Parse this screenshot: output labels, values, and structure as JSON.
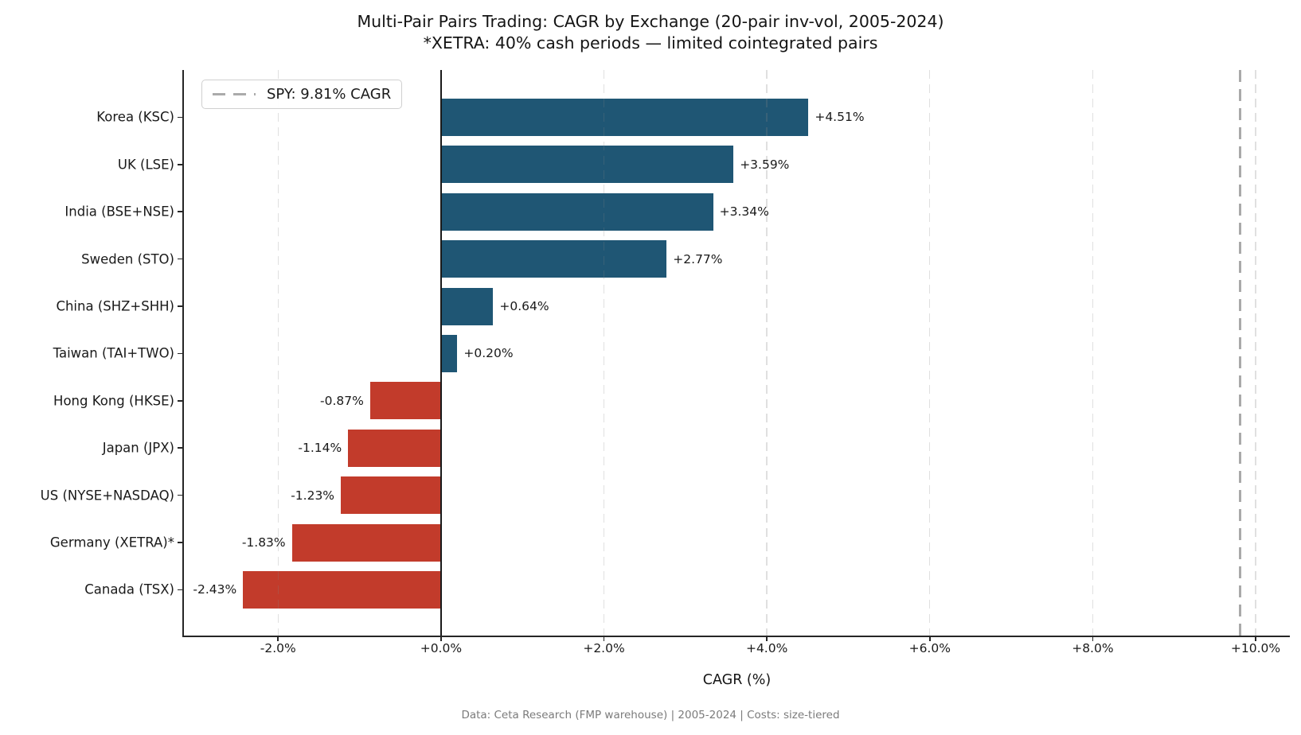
{
  "title": "Multi-Pair Pairs Trading: CAGR by Exchange (20-pair inv-vol, 2005-2024)",
  "subtitle": "*XETRA: 40% cash periods — limited cointegrated pairs",
  "legend": {
    "label": "SPY: 9.81% CAGR",
    "line_color": "#ababab"
  },
  "footer": "Data: Ceta Research (FMP warehouse) | 2005-2024 | Costs: size-tiered",
  "colors": {
    "positive_bar": "#1f5674",
    "negative_bar": "#c23b2b",
    "reference_line": "#a9a9a9",
    "zero_line": "#1a1a1a",
    "footer_text": "#7b7b7b"
  },
  "chart_data": {
    "type": "bar",
    "orientation": "horizontal",
    "title": "Multi-Pair Pairs Trading: CAGR by Exchange (20-pair inv-vol, 2005-2024)",
    "subtitle": "*XETRA: 40% cash periods — limited cointegrated pairs",
    "xlabel": "CAGR (%)",
    "categories": [
      "Korea (KSC)",
      "UK (LSE)",
      "India (BSE+NSE)",
      "Sweden (STO)",
      "China (SHZ+SHH)",
      "Taiwan (TAI+TWO)",
      "Hong Kong (HKSE)",
      "Japan (JPX)",
      "US (NYSE+NASDAQ)",
      "Germany (XETRA)*",
      "Canada (TSX)"
    ],
    "values": [
      4.51,
      3.59,
      3.34,
      2.77,
      0.64,
      0.2,
      -0.87,
      -1.14,
      -1.23,
      -1.83,
      -2.43
    ],
    "value_labels": [
      "+4.51%",
      "+3.59%",
      "+3.34%",
      "+2.77%",
      "+0.64%",
      "+0.20%",
      "-0.87%",
      "-1.14%",
      "-1.23%",
      "-1.83%",
      "-2.43%"
    ],
    "xlim": [
      -3.156,
      10.42
    ],
    "xticks": [
      -2,
      0,
      2,
      4,
      6,
      8,
      10
    ],
    "xtick_labels": [
      "-2.0%",
      "+0.0%",
      "+2.0%",
      "+4.0%",
      "+6.0%",
      "+8.0%",
      "+10.0%"
    ],
    "grid": true,
    "legend_position": "upper-left",
    "legend_label": "SPY: 9.81% CAGR",
    "reference_line": {
      "value": 9.81,
      "label": "SPY: 9.81% CAGR",
      "color": "#a9a9a9",
      "style": "dashed"
    }
  }
}
